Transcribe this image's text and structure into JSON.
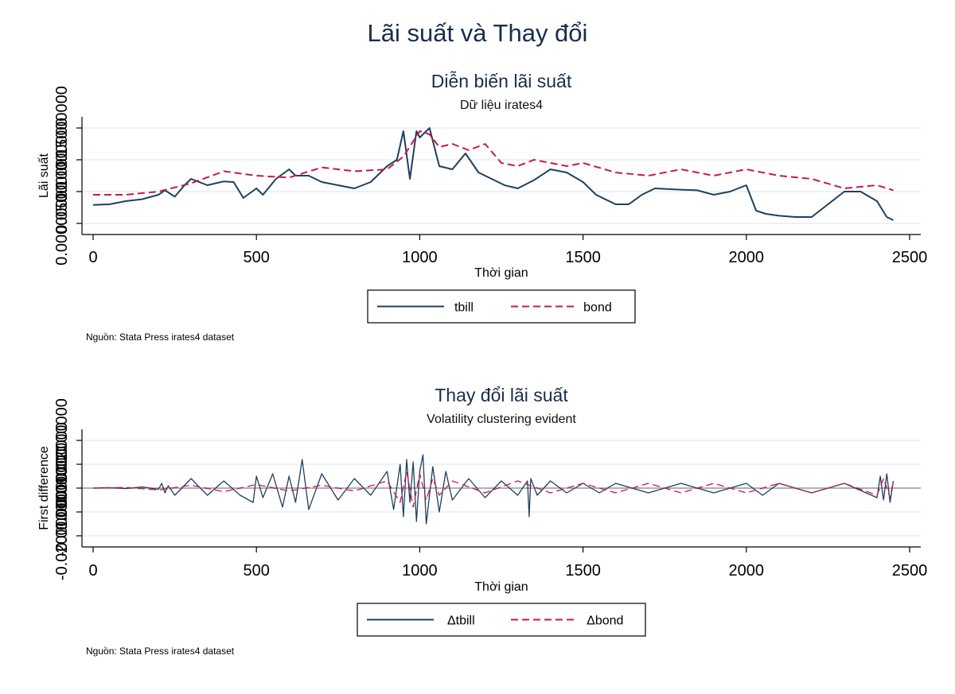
{
  "figure_title": "Lãi suất và Thay đổi",
  "colors": {
    "title": "#1a2d4d",
    "tbill": "#1f4060",
    "bond": "#c8194a",
    "grid": "#e6eef2",
    "zero_line": "#9a9a9a"
  },
  "chart_data": [
    {
      "type": "line",
      "title": "Diễn biến lãi suất",
      "subtitle": "Dữ liệu irates4",
      "xlabel": "Thời gian",
      "ylabel": "Lãi suất",
      "xlim": [
        0,
        2500
      ],
      "ylim": [
        0,
        0.15
      ],
      "xticks": [
        0,
        500,
        1000,
        1500,
        2000,
        2500
      ],
      "yticks": [
        0,
        0.05,
        0.1,
        0.15
      ],
      "ytick_labels": [
        "0.00000000",
        "0.05000000",
        "0.10000000",
        "0.15000000"
      ],
      "grid": true,
      "legend": "bottom",
      "note": "Nguồn: Stata Press irates4 dataset",
      "series": [
        {
          "name": "tbill",
          "style": "solid",
          "x": [
            0,
            50,
            100,
            150,
            200,
            220,
            250,
            280,
            300,
            350,
            400,
            430,
            460,
            500,
            520,
            560,
            600,
            620,
            660,
            700,
            750,
            800,
            850,
            900,
            930,
            950,
            970,
            990,
            1000,
            1030,
            1060,
            1100,
            1140,
            1180,
            1220,
            1260,
            1300,
            1350,
            1400,
            1450,
            1500,
            1540,
            1600,
            1640,
            1680,
            1720,
            1800,
            1850,
            1900,
            1950,
            2000,
            2030,
            2060,
            2100,
            2150,
            2200,
            2250,
            2300,
            2350,
            2400,
            2430,
            2450
          ],
          "y": [
            0.029,
            0.03,
            0.035,
            0.038,
            0.045,
            0.052,
            0.042,
            0.06,
            0.07,
            0.06,
            0.066,
            0.065,
            0.04,
            0.055,
            0.045,
            0.07,
            0.085,
            0.075,
            0.075,
            0.065,
            0.06,
            0.055,
            0.065,
            0.09,
            0.1,
            0.145,
            0.07,
            0.145,
            0.135,
            0.15,
            0.09,
            0.085,
            0.11,
            0.08,
            0.07,
            0.06,
            0.055,
            0.068,
            0.085,
            0.08,
            0.065,
            0.045,
            0.03,
            0.03,
            0.045,
            0.055,
            0.053,
            0.052,
            0.045,
            0.05,
            0.06,
            0.02,
            0.015,
            0.012,
            0.01,
            0.01,
            0.03,
            0.05,
            0.05,
            0.035,
            0.01,
            0.005
          ]
        },
        {
          "name": "bond",
          "style": "dashed",
          "x": [
            0,
            100,
            200,
            300,
            400,
            500,
            600,
            700,
            800,
            900,
            950,
            1000,
            1030,
            1060,
            1100,
            1150,
            1200,
            1250,
            1300,
            1350,
            1400,
            1450,
            1500,
            1600,
            1700,
            1800,
            1900,
            2000,
            2100,
            2200,
            2300,
            2400,
            2450
          ],
          "y": [
            0.045,
            0.045,
            0.05,
            0.063,
            0.082,
            0.075,
            0.072,
            0.088,
            0.082,
            0.085,
            0.105,
            0.145,
            0.14,
            0.12,
            0.125,
            0.115,
            0.125,
            0.095,
            0.09,
            0.1,
            0.095,
            0.09,
            0.095,
            0.08,
            0.075,
            0.085,
            0.075,
            0.085,
            0.075,
            0.07,
            0.055,
            0.06,
            0.052
          ]
        }
      ]
    },
    {
      "type": "line",
      "title": "Thay đổi lãi suất",
      "subtitle": "Volatility clustering evident",
      "xlabel": "Thời gian",
      "ylabel": "First difference",
      "xlim": [
        0,
        2500
      ],
      "ylim": [
        -0.02,
        0.02
      ],
      "xticks": [
        0,
        500,
        1000,
        1500,
        2000,
        2500
      ],
      "yticks": [
        -0.02,
        -0.01,
        0,
        0.01,
        0.02
      ],
      "ytick_labels": [
        "-0.02000000",
        "-0.01000000",
        "0.00000000",
        "0.01000000",
        "0.02000000"
      ],
      "grid": true,
      "legend": "bottom",
      "note": "Nguồn: Stata Press irates4 dataset",
      "series": [
        {
          "name": "Δtbill",
          "style": "solid",
          "x": [
            0,
            50,
            100,
            150,
            200,
            210,
            220,
            230,
            250,
            300,
            350,
            400,
            450,
            490,
            500,
            520,
            550,
            580,
            600,
            620,
            640,
            660,
            700,
            750,
            800,
            850,
            900,
            920,
            940,
            950,
            960,
            970,
            980,
            990,
            1000,
            1010,
            1020,
            1040,
            1060,
            1080,
            1100,
            1150,
            1200,
            1250,
            1300,
            1330,
            1335,
            1340,
            1360,
            1400,
            1450,
            1500,
            1550,
            1600,
            1700,
            1800,
            1900,
            2000,
            2050,
            2100,
            2200,
            2300,
            2400,
            2410,
            2420,
            2430,
            2440,
            2450
          ],
          "y": [
            0.0,
            0.0002,
            -0.0002,
            0.0005,
            -0.0005,
            0.002,
            -0.002,
            0.001,
            -0.003,
            0.004,
            -0.003,
            0.003,
            -0.003,
            -0.006,
            0.005,
            -0.004,
            0.006,
            -0.008,
            0.005,
            -0.006,
            0.012,
            -0.009,
            0.006,
            -0.005,
            0.004,
            -0.003,
            0.007,
            -0.009,
            0.01,
            -0.012,
            0.012,
            -0.006,
            0.011,
            -0.014,
            0.007,
            0.014,
            -0.015,
            0.009,
            -0.01,
            0.007,
            -0.005,
            0.004,
            -0.004,
            0.003,
            -0.003,
            0.003,
            -0.012,
            0.004,
            -0.003,
            0.003,
            -0.002,
            0.002,
            -0.002,
            0.002,
            -0.002,
            0.002,
            -0.002,
            0.002,
            -0.003,
            0.002,
            -0.002,
            0.002,
            -0.004,
            0.005,
            -0.005,
            0.006,
            -0.006,
            0.003
          ]
        },
        {
          "name": "Δbond",
          "style": "dashed",
          "x": [
            0,
            100,
            200,
            300,
            400,
            500,
            600,
            700,
            800,
            900,
            940,
            960,
            980,
            1000,
            1020,
            1040,
            1060,
            1100,
            1200,
            1300,
            1400,
            1500,
            1600,
            1700,
            1800,
            1900,
            2000,
            2100,
            2200,
            2300,
            2400,
            2420,
            2440,
            2450
          ],
          "y": [
            0.0,
            0.0003,
            -0.0008,
            0.0012,
            -0.0015,
            0.0015,
            -0.0012,
            0.0012,
            -0.0012,
            0.003,
            -0.006,
            0.007,
            -0.008,
            0.006,
            -0.005,
            0.004,
            -0.003,
            0.003,
            -0.002,
            0.003,
            -0.002,
            0.002,
            -0.002,
            0.002,
            -0.002,
            0.002,
            -0.002,
            0.002,
            -0.002,
            0.002,
            -0.003,
            0.004,
            -0.004,
            0.003
          ]
        }
      ]
    }
  ]
}
